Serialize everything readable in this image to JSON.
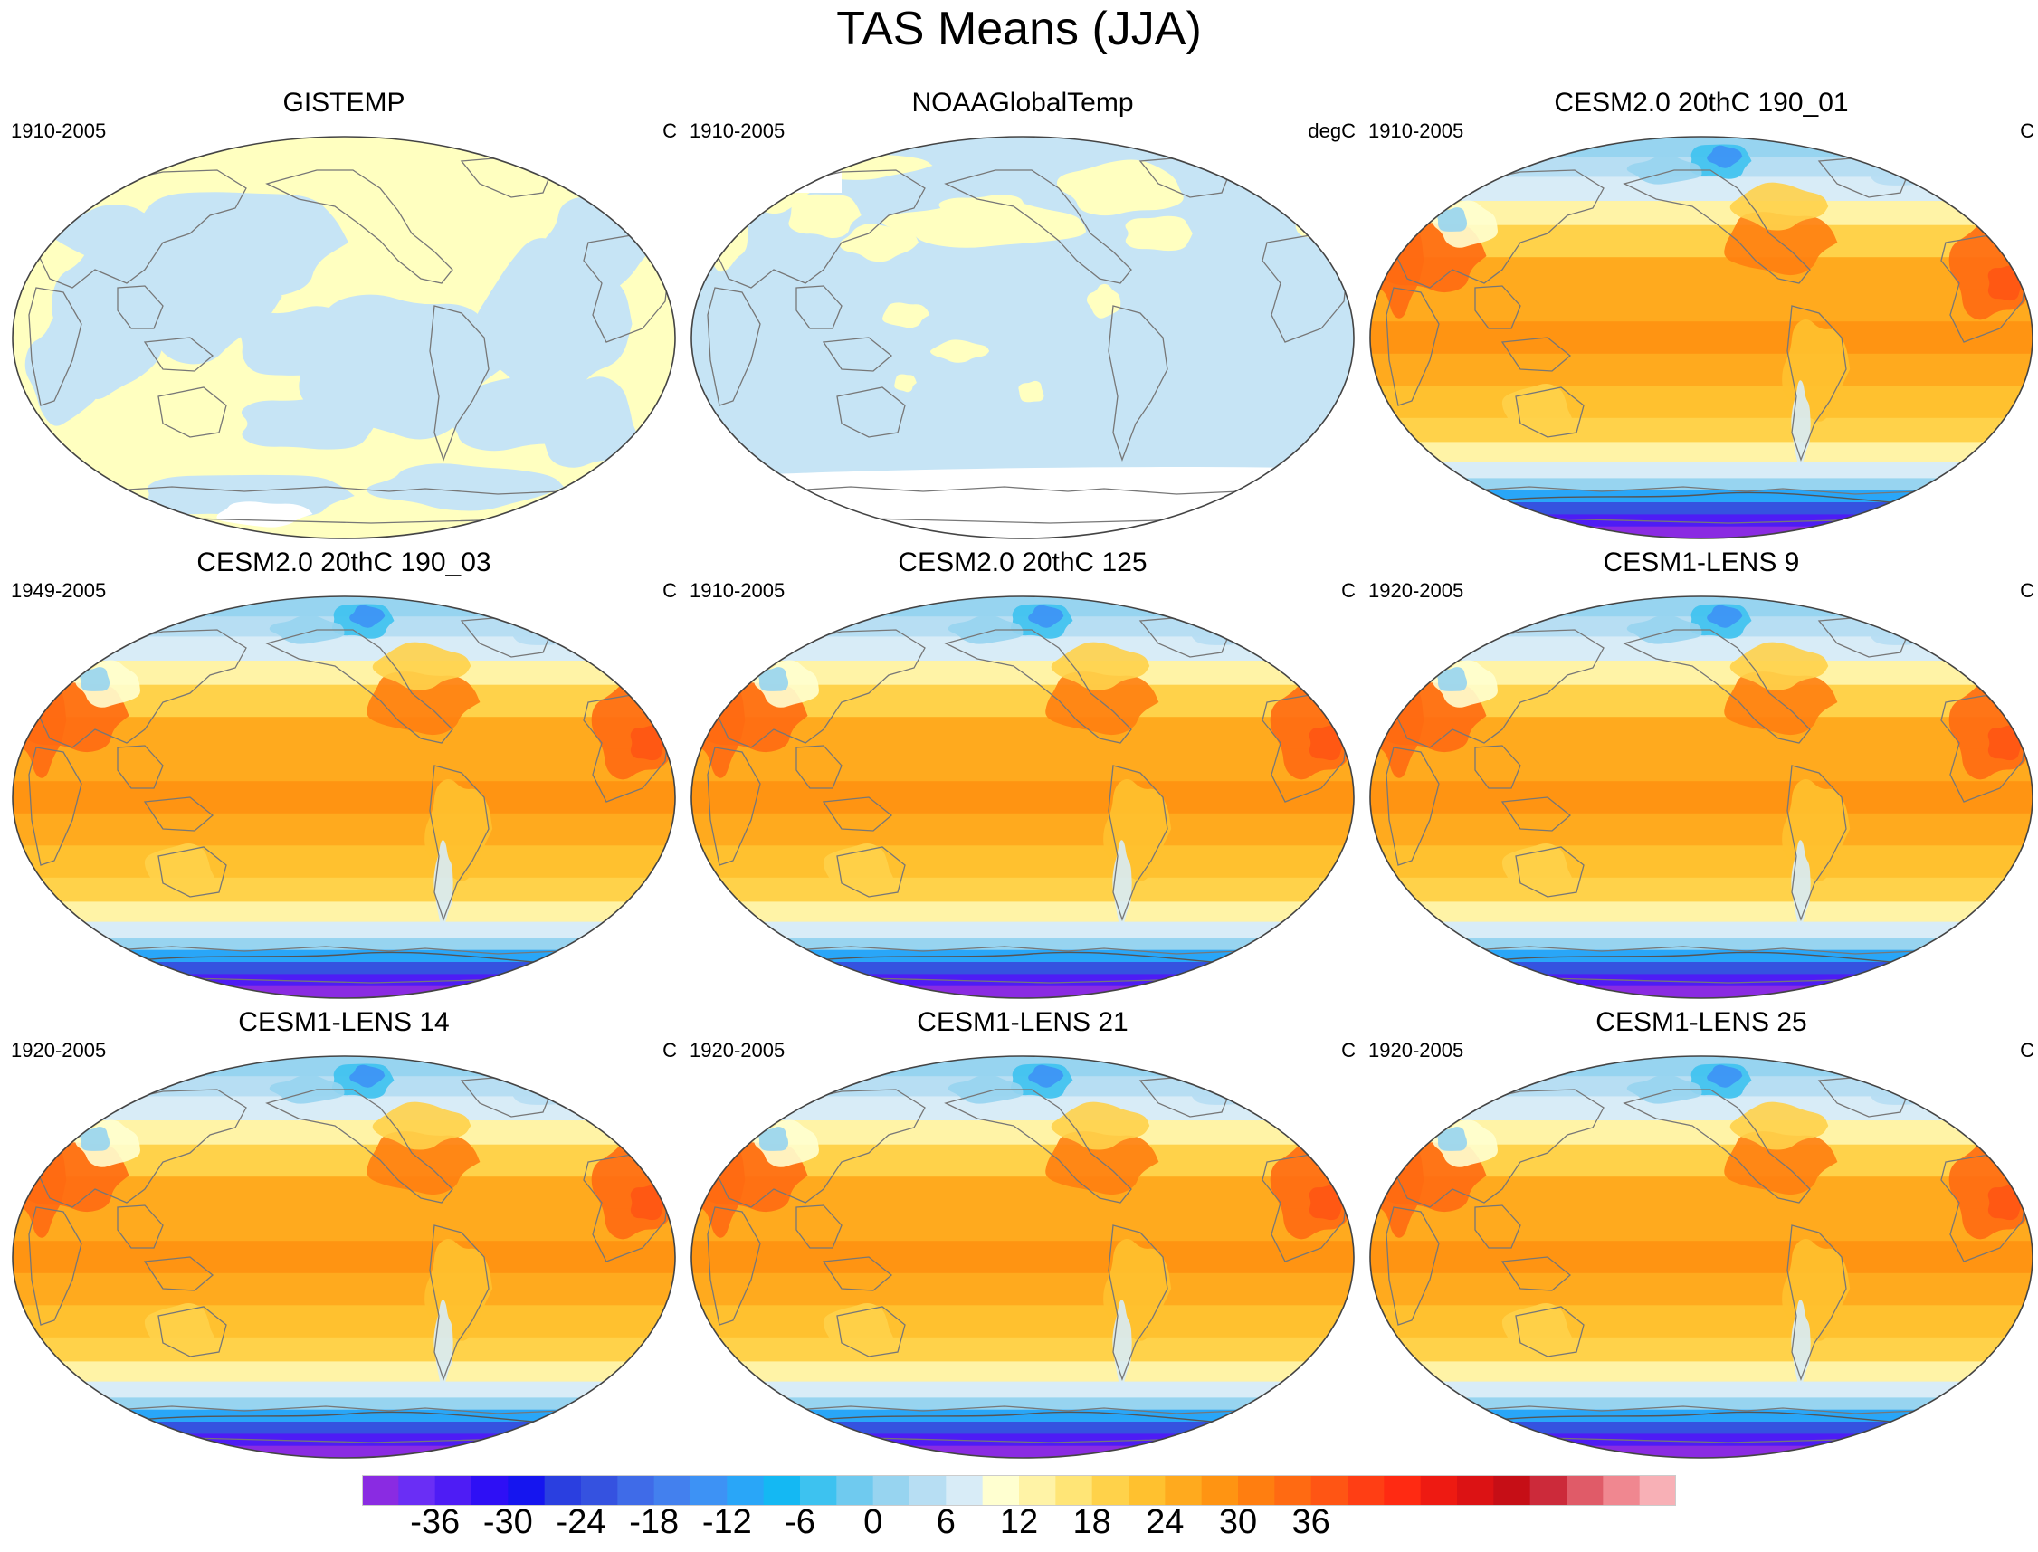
{
  "title": "TAS Means (JJA)",
  "panels": [
    {
      "title": "GISTEMP",
      "period": "1910-2005",
      "units": "C",
      "style": "obs_gistemp"
    },
    {
      "title": "NOAAGlobalTemp",
      "period": "1910-2005",
      "units": "degC",
      "style": "obs_noaa"
    },
    {
      "title": "CESM2.0 20thC 190_01",
      "period": "1910-2005",
      "units": "C",
      "style": "model"
    },
    {
      "title": "CESM2.0 20thC 190_03",
      "period": "1949-2005",
      "units": "C",
      "style": "model"
    },
    {
      "title": "CESM2.0 20thC 125",
      "period": "1910-2005",
      "units": "C",
      "style": "model"
    },
    {
      "title": "CESM1-LENS 9",
      "period": "1920-2005",
      "units": "C",
      "style": "model"
    },
    {
      "title": "CESM1-LENS 14",
      "period": "1920-2005",
      "units": "C",
      "style": "model"
    },
    {
      "title": "CESM1-LENS 21",
      "period": "1920-2005",
      "units": "C",
      "style": "model"
    },
    {
      "title": "CESM1-LENS 25",
      "period": "1920-2005",
      "units": "C",
      "style": "model"
    }
  ],
  "colorbar": {
    "colors": [
      "#8a2be2",
      "#6a2ef5",
      "#4e1cf5",
      "#2e0ff5",
      "#1515ef",
      "#2a3fe0",
      "#3552e0",
      "#3f6be8",
      "#4380ee",
      "#3d92f5",
      "#29a6f8",
      "#14b8f3",
      "#3dc2f0",
      "#6fcaef",
      "#97d4f0",
      "#b7def3",
      "#d8ecf7",
      "#ffffd0",
      "#fff3a6",
      "#ffe576",
      "#ffd24a",
      "#ffc12f",
      "#ffaa1e",
      "#ff9412",
      "#ff7e10",
      "#ff6a12",
      "#ff5514",
      "#ff3e14",
      "#ff2a12",
      "#ee1a12",
      "#dc1214",
      "#c60e16",
      "#cc2a3a",
      "#e05b68",
      "#f08790",
      "#f8b0b6"
    ],
    "tick_labels": [
      "-36",
      "-30",
      "-24",
      "-18",
      "-12",
      "-6",
      "0",
      "6",
      "12",
      "18",
      "24",
      "30",
      "36"
    ]
  }
}
